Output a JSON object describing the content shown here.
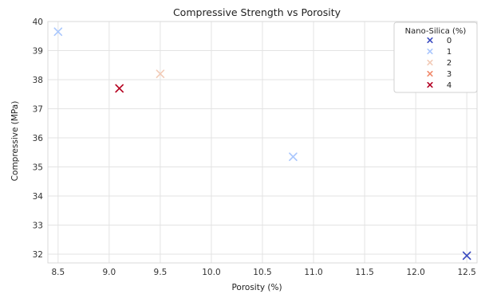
{
  "chart_data": {
    "type": "scatter",
    "title": "Compressive Strength vs Porosity",
    "xlabel": "Porosity (%)",
    "ylabel": "Compressive (MPa)",
    "xlim": [
      8.4,
      12.6
    ],
    "ylim": [
      31.7,
      40.0
    ],
    "xticks": [
      "8.5",
      "9.0",
      "9.5",
      "10.0",
      "10.5",
      "11.0",
      "11.5",
      "12.0",
      "12.5"
    ],
    "yticks": [
      "32",
      "33",
      "34",
      "35",
      "36",
      "37",
      "38",
      "39",
      "40"
    ],
    "grid": true,
    "legend": {
      "title": "Nano-Silica (%)",
      "placement": "top-right"
    },
    "marker": "x",
    "series": [
      {
        "name": "0",
        "color": "#3b4cc0",
        "points": [
          {
            "x": 12.5,
            "y": 31.95
          }
        ]
      },
      {
        "name": "1",
        "color": "#aac7fd",
        "points": [
          {
            "x": 8.5,
            "y": 39.65
          },
          {
            "x": 10.8,
            "y": 35.35
          }
        ]
      },
      {
        "name": "2",
        "color": "#f2cbb7",
        "points": [
          {
            "x": 9.5,
            "y": 38.2
          }
        ]
      },
      {
        "name": "3",
        "color": "#f08a6c",
        "points": [
          {
            "x": 9.1,
            "y": 37.7
          }
        ]
      },
      {
        "name": "4",
        "color": "#b40426",
        "points": [
          {
            "x": 9.1,
            "y": 37.7
          }
        ]
      }
    ]
  }
}
